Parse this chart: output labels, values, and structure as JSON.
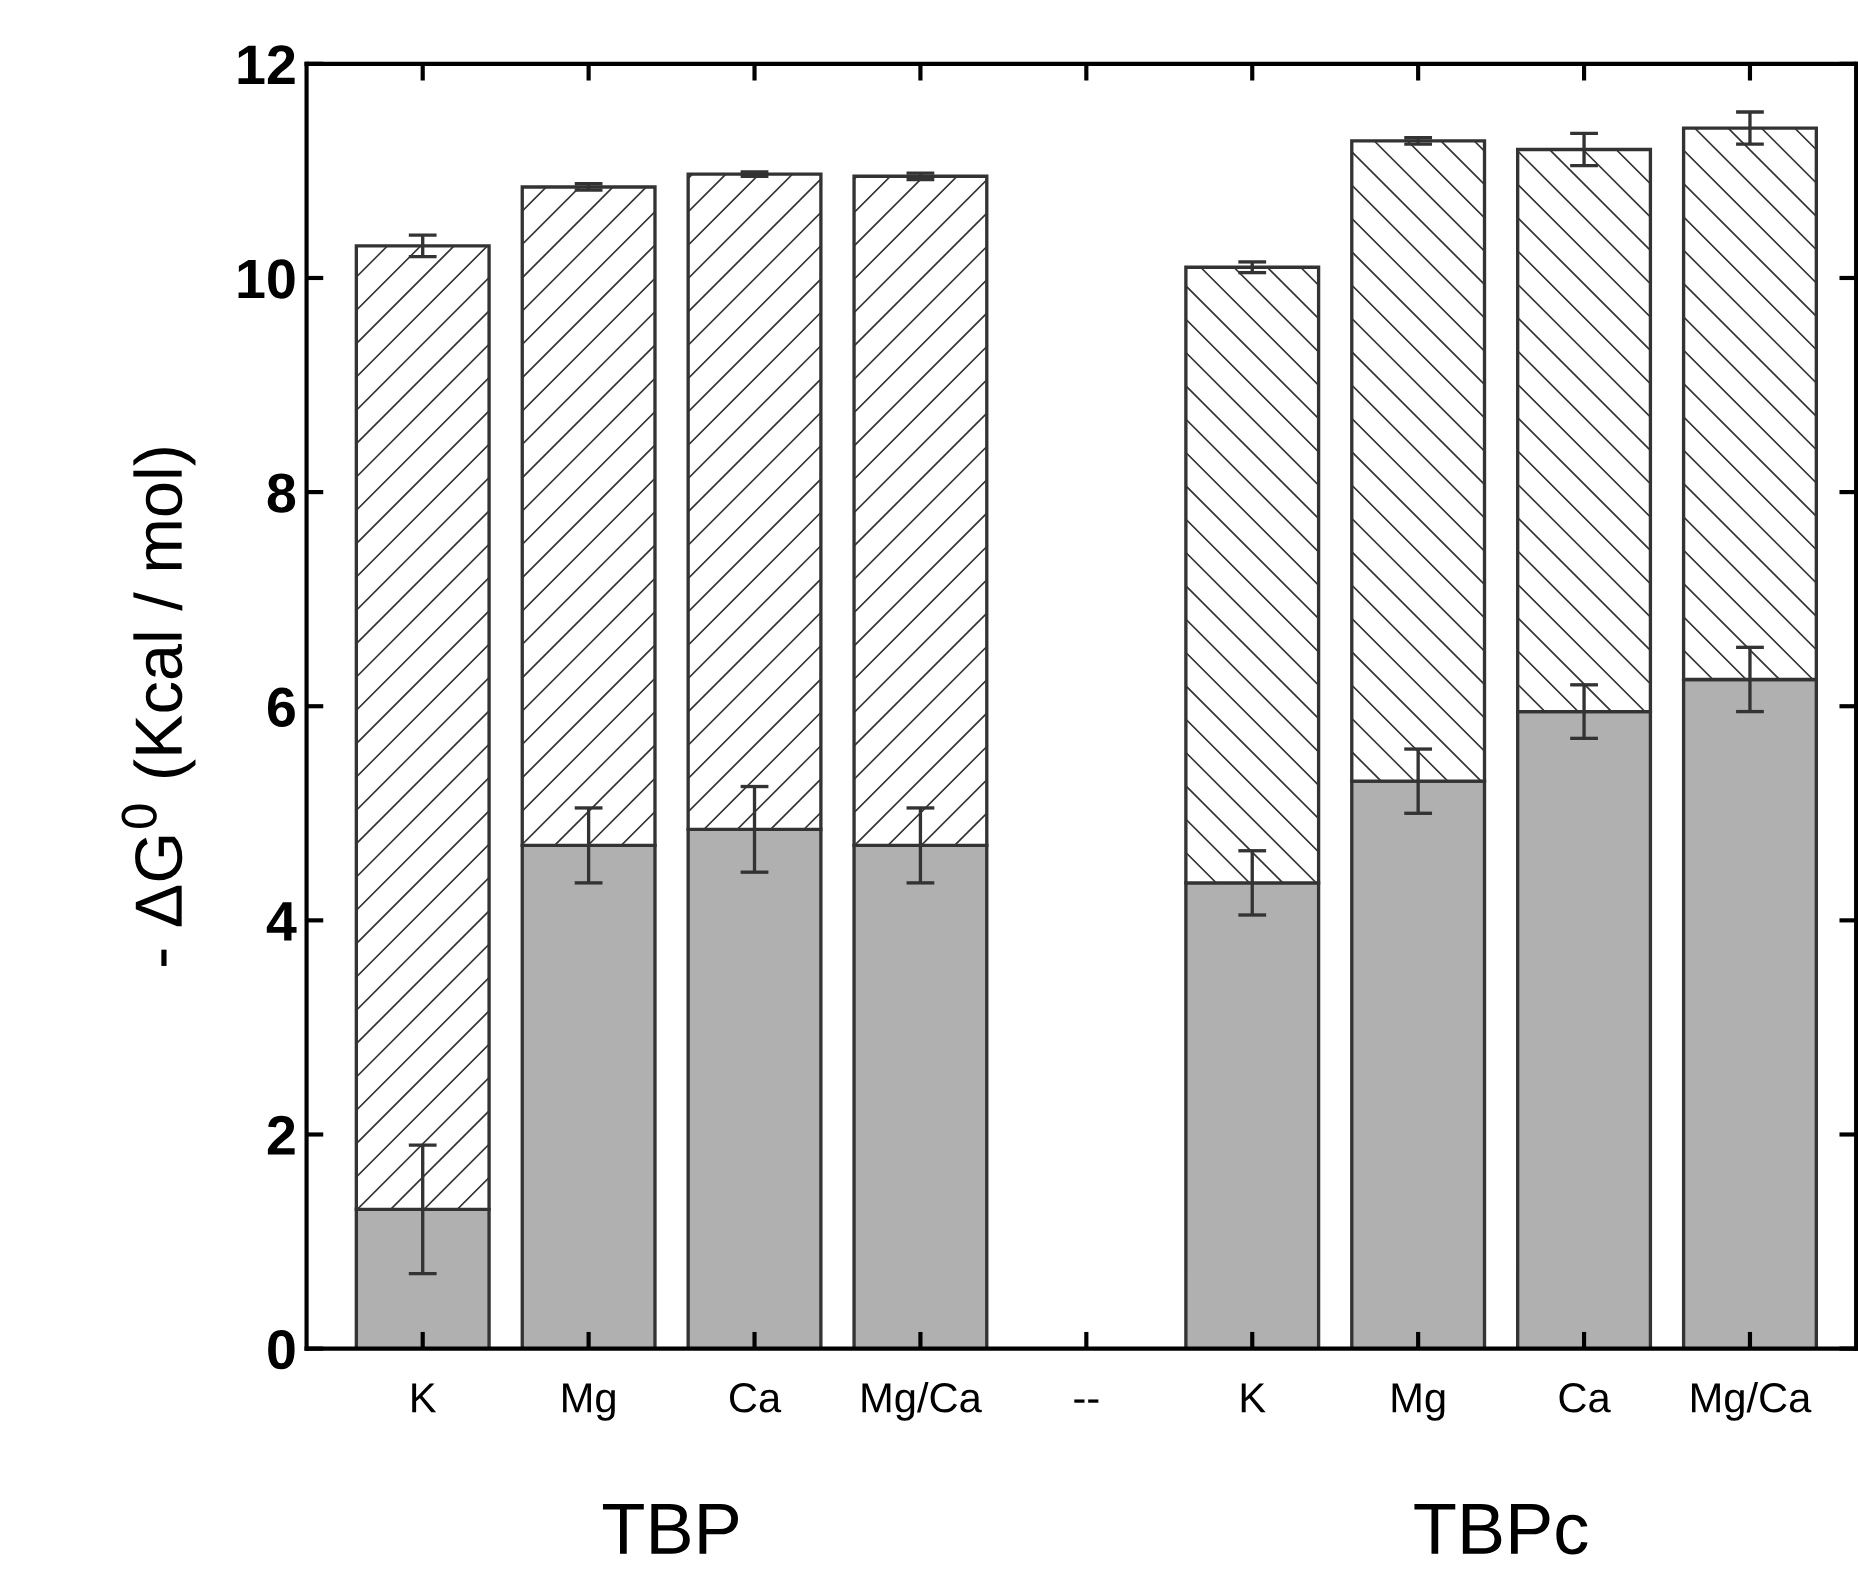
{
  "chart_data": {
    "type": "bar",
    "stacked": true,
    "ylabel": "- ΔG$^{0}$ (Kcal / mol)",
    "categories": [
      "K",
      "Mg",
      "Ca",
      "Mg/Ca",
      "--",
      "K",
      "Mg",
      "Ca",
      "Mg/Ca"
    ],
    "series": [
      {
        "color": "#b0b0b0",
        "values": [
          1.3,
          4.7,
          4.85,
          4.7,
          null,
          4.35,
          5.3,
          5.95,
          6.25
        ],
        "errors": [
          0.6,
          0.35,
          0.4,
          0.35,
          null,
          0.3,
          0.3,
          0.25,
          0.3
        ]
      },
      {
        "color": "#ffffff",
        "values": [
          9.0,
          6.15,
          6.12,
          6.25,
          null,
          null,
          null,
          null,
          null
        ],
        "errors": [
          0.1,
          0.03,
          0.02,
          0.03,
          null,
          null,
          null,
          null,
          null
        ]
      },
      {
        "color": "#ffffff",
        "values": [
          null,
          null,
          null,
          null,
          null,
          5.75,
          5.98,
          5.25,
          5.15
        ],
        "errors": [
          null,
          null,
          null,
          null,
          null,
          0.05,
          0.03,
          0.15,
          0.15
        ]
      }
    ],
    "ylim": [
      0,
      12
    ],
    "yticks": [
      0,
      2,
      4,
      6,
      8,
      10,
      12
    ],
    "annotations": [
      "TBP",
      "TBPc"
    ]
  }
}
